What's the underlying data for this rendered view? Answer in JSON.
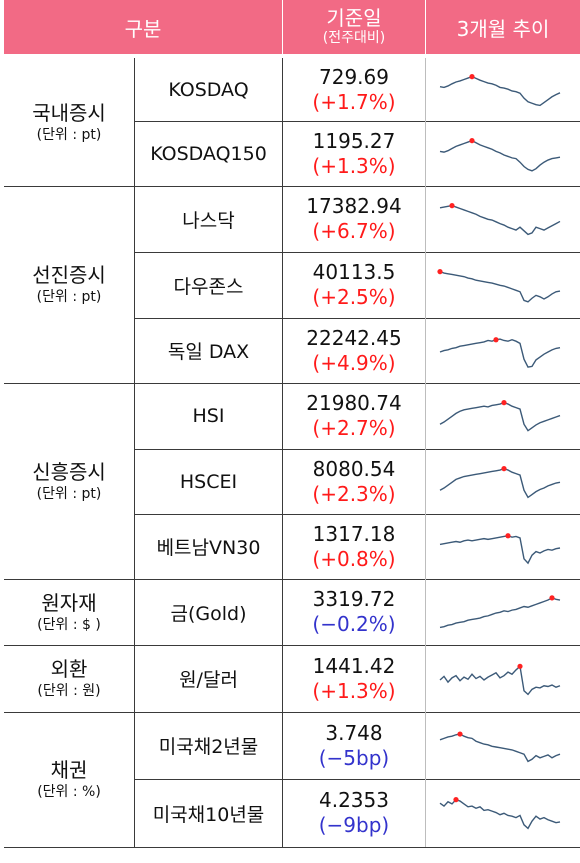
{
  "header": {
    "category": "구분",
    "base_date": "기준일",
    "base_sub": "(전주대비)",
    "trend": "3개월 추이"
  },
  "groups": [
    {
      "name": "국내증시",
      "unit": "(단위 : pt)"
    },
    {
      "name": "선진증시",
      "unit": "(단위 : pt)"
    },
    {
      "name": "신흥증시",
      "unit": "(단위 : pt)"
    },
    {
      "name": "원자재",
      "unit": "(단위 : $ )"
    },
    {
      "name": "외환",
      "unit": "(단위 : 원)"
    },
    {
      "name": "채권",
      "unit": "(단위 : %)"
    }
  ],
  "rows": [
    {
      "name": "KOSDAQ",
      "value": "729.69",
      "change": "(+1.7%)",
      "change_color": "#ff1a1a",
      "spark": [
        0.62,
        0.6,
        0.64,
        0.7,
        0.75,
        0.78,
        0.82,
        0.86,
        0.9,
        0.85,
        0.8,
        0.76,
        0.72,
        0.7,
        0.66,
        0.6,
        0.58,
        0.55,
        0.5,
        0.48,
        0.44,
        0.3,
        0.2,
        0.16,
        0.12,
        0.1,
        0.18,
        0.26,
        0.34,
        0.4,
        0.45
      ],
      "marker_index": 8
    },
    {
      "name": "KOSDAQ150",
      "value": "1195.27",
      "change": "(+1.3%)",
      "change_color": "#ff1a1a",
      "spark": [
        0.6,
        0.58,
        0.62,
        0.68,
        0.74,
        0.78,
        0.82,
        0.86,
        0.9,
        0.84,
        0.78,
        0.74,
        0.7,
        0.66,
        0.6,
        0.56,
        0.5,
        0.46,
        0.42,
        0.4,
        0.3,
        0.18,
        0.1,
        0.06,
        0.12,
        0.22,
        0.3,
        0.36,
        0.4,
        0.42,
        0.44
      ],
      "marker_index": 8
    },
    {
      "name": "나스닥",
      "value": "17382.94",
      "change": "(+6.7%)",
      "change_color": "#ff1a1a",
      "spark": [
        0.84,
        0.86,
        0.88,
        0.9,
        0.86,
        0.82,
        0.78,
        0.74,
        0.7,
        0.66,
        0.6,
        0.56,
        0.52,
        0.5,
        0.45,
        0.4,
        0.36,
        0.3,
        0.26,
        0.22,
        0.3,
        0.2,
        0.1,
        0.14,
        0.3,
        0.26,
        0.22,
        0.28,
        0.34,
        0.4,
        0.46
      ],
      "marker_index": 3
    },
    {
      "name": "다우존스",
      "value": "40113.5",
      "change": "(+2.5%)",
      "change_color": "#ff1a1a",
      "spark": [
        0.9,
        0.86,
        0.84,
        0.82,
        0.8,
        0.78,
        0.76,
        0.72,
        0.7,
        0.66,
        0.64,
        0.62,
        0.6,
        0.58,
        0.55,
        0.52,
        0.5,
        0.46,
        0.42,
        0.38,
        0.34,
        0.1,
        0.06,
        0.16,
        0.24,
        0.2,
        0.14,
        0.2,
        0.28,
        0.34,
        0.36
      ],
      "marker_index": 0
    },
    {
      "name": "독일 DAX",
      "value": "22242.45",
      "change": "(+4.9%)",
      "change_color": "#ff1a1a",
      "spark": [
        0.5,
        0.54,
        0.56,
        0.6,
        0.62,
        0.66,
        0.68,
        0.7,
        0.72,
        0.74,
        0.76,
        0.78,
        0.82,
        0.8,
        0.84,
        0.86,
        0.82,
        0.8,
        0.84,
        0.8,
        0.74,
        0.3,
        0.08,
        0.1,
        0.28,
        0.36,
        0.44,
        0.5,
        0.56,
        0.6,
        0.62
      ],
      "marker_index": 14
    },
    {
      "name": "HSI",
      "value": "21980.74",
      "change": "(+2.7%)",
      "change_color": "#ff1a1a",
      "spark": [
        0.3,
        0.36,
        0.44,
        0.52,
        0.6,
        0.66,
        0.7,
        0.72,
        0.74,
        0.76,
        0.78,
        0.8,
        0.78,
        0.82,
        0.84,
        0.86,
        0.9,
        0.86,
        0.8,
        0.76,
        0.72,
        0.3,
        0.12,
        0.2,
        0.28,
        0.34,
        0.38,
        0.42,
        0.46,
        0.5,
        0.54
      ],
      "marker_index": 16
    },
    {
      "name": "HSCEI",
      "value": "8080.54",
      "change": "(+2.3%)",
      "change_color": "#ff1a1a",
      "spark": [
        0.3,
        0.36,
        0.44,
        0.52,
        0.6,
        0.64,
        0.68,
        0.7,
        0.72,
        0.74,
        0.76,
        0.78,
        0.8,
        0.82,
        0.84,
        0.86,
        0.9,
        0.86,
        0.8,
        0.76,
        0.72,
        0.3,
        0.1,
        0.18,
        0.26,
        0.32,
        0.36,
        0.42,
        0.46,
        0.5,
        0.52
      ],
      "marker_index": 16
    },
    {
      "name": "베트남VN30",
      "value": "1317.18",
      "change": "(+0.8%)",
      "change_color": "#ff1a1a",
      "spark": [
        0.6,
        0.62,
        0.64,
        0.66,
        0.68,
        0.66,
        0.7,
        0.72,
        0.7,
        0.72,
        0.74,
        0.76,
        0.74,
        0.76,
        0.78,
        0.8,
        0.82,
        0.84,
        0.8,
        0.82,
        0.78,
        0.2,
        0.08,
        0.3,
        0.4,
        0.36,
        0.42,
        0.46,
        0.44,
        0.48,
        0.5
      ],
      "marker_index": 17
    },
    {
      "name": "금(Gold)",
      "value": "3319.72",
      "change": "(−0.2%)",
      "change_color": "#3333cc",
      "spark": [
        0.1,
        0.12,
        0.16,
        0.18,
        0.22,
        0.24,
        0.26,
        0.3,
        0.32,
        0.34,
        0.36,
        0.4,
        0.42,
        0.46,
        0.5,
        0.52,
        0.56,
        0.54,
        0.58,
        0.6,
        0.64,
        0.68,
        0.66,
        0.7,
        0.74,
        0.78,
        0.82,
        0.86,
        0.92,
        0.88,
        0.86
      ],
      "marker_index": 28
    },
    {
      "name": "원/달러",
      "value": "1441.42",
      "change": "(+1.3%)",
      "change_color": "#ff1a1a",
      "spark": [
        0.5,
        0.6,
        0.44,
        0.56,
        0.62,
        0.48,
        0.58,
        0.52,
        0.66,
        0.54,
        0.6,
        0.5,
        0.58,
        0.64,
        0.7,
        0.56,
        0.62,
        0.72,
        0.66,
        0.78,
        0.88,
        0.2,
        0.1,
        0.24,
        0.3,
        0.28,
        0.34,
        0.32,
        0.36,
        0.3,
        0.34
      ],
      "marker_index": 20
    },
    {
      "name": "미국채2년물",
      "value": "3.748",
      "change": "(−5bp)",
      "change_color": "#3333cc",
      "spark": [
        0.7,
        0.74,
        0.78,
        0.8,
        0.84,
        0.86,
        0.8,
        0.76,
        0.74,
        0.66,
        0.62,
        0.58,
        0.56,
        0.52,
        0.5,
        0.48,
        0.46,
        0.44,
        0.42,
        0.38,
        0.34,
        0.3,
        0.1,
        0.16,
        0.26,
        0.2,
        0.24,
        0.28,
        0.2,
        0.26,
        0.3
      ],
      "marker_index": 5
    },
    {
      "name": "미국채10년물",
      "value": "4.2353",
      "change": "(−9bp)",
      "change_color": "#3333cc",
      "spark": [
        0.8,
        0.72,
        0.84,
        0.78,
        0.9,
        0.86,
        0.78,
        0.7,
        0.72,
        0.66,
        0.7,
        0.6,
        0.62,
        0.58,
        0.54,
        0.48,
        0.52,
        0.46,
        0.44,
        0.4,
        0.46,
        0.2,
        0.1,
        0.3,
        0.44,
        0.36,
        0.4,
        0.34,
        0.3,
        0.26,
        0.28
      ],
      "marker_index": 4
    }
  ]
}
